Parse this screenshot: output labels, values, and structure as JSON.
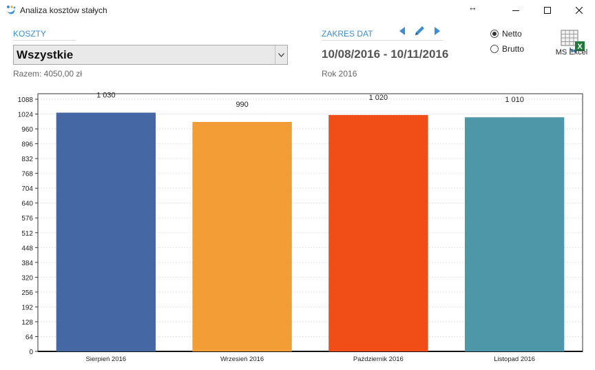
{
  "window": {
    "title": "Analiza kosztów stałych",
    "resize_glyph": "↔",
    "icons": {
      "app": "app-logo-icon",
      "minimize": "minimize-icon",
      "maximize": "maximize-icon",
      "close": "close-icon"
    }
  },
  "costs": {
    "label": "KOSZTY",
    "selected": "Wszystkie",
    "total": "Razem: 4050,00 zł"
  },
  "date_range": {
    "label": "ZAKRES DAT",
    "range": "10/08/2016 - 10/11/2016",
    "year": "Rok 2016",
    "icons": {
      "prev": "arrow-left-icon",
      "edit": "pencil-icon",
      "next": "arrow-right-icon"
    }
  },
  "amount_type": {
    "options": [
      "Netto",
      "Brutto"
    ],
    "selected": "Netto"
  },
  "export": {
    "label": "MS Excel",
    "icon": "excel-export-icon"
  },
  "colors": {
    "accent": "#3a8fd1"
  },
  "chart_data": {
    "type": "bar",
    "categories": [
      "Sierpień 2016",
      "Wrzesień 2016",
      "Październik 2016",
      "Listopad 2016"
    ],
    "values": [
      1030,
      990,
      1020,
      1010
    ],
    "value_labels": [
      "1 030",
      "990",
      "1 020",
      "1 010"
    ],
    "colors": [
      "#4567a4",
      "#f39d37",
      "#f04e16",
      "#4e97a8"
    ],
    "yticks": [
      0,
      64,
      128,
      192,
      256,
      320,
      384,
      448,
      512,
      576,
      640,
      704,
      768,
      832,
      896,
      960,
      1024,
      1088
    ],
    "ylim": [
      0,
      1088
    ],
    "grid": true,
    "title": "",
    "xlabel": "",
    "ylabel": ""
  }
}
